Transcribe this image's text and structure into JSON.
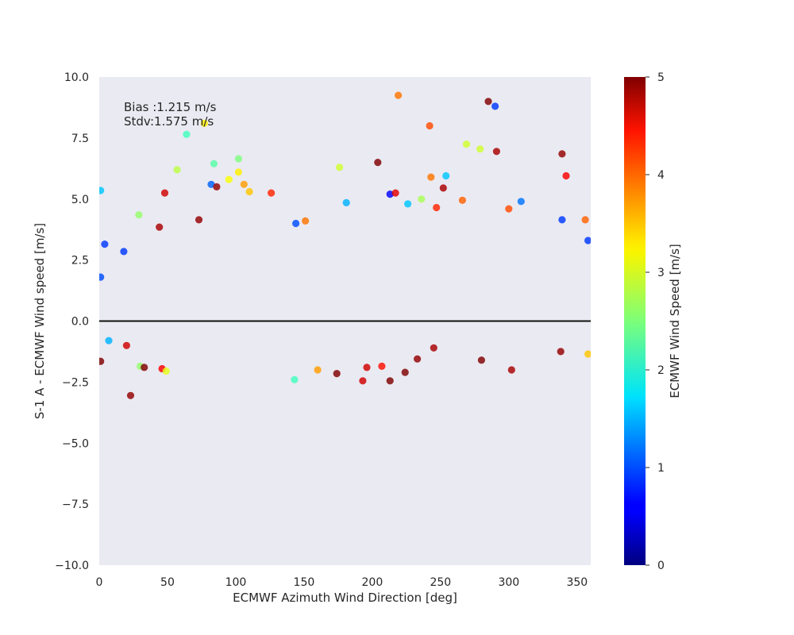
{
  "chart_data": {
    "type": "scatter",
    "title": "",
    "xlabel": "ECMWF Azimuth Wind Direction [deg]",
    "ylabel": "S-1 A - ECMWF Wind speed [m/s]",
    "xlim": [
      0,
      360
    ],
    "ylim": [
      -10,
      10
    ],
    "xticks": [
      0,
      50,
      100,
      150,
      200,
      250,
      300,
      350
    ],
    "yticks": [
      -10.0,
      -7.5,
      -5.0,
      -2.5,
      0.0,
      2.5,
      5.0,
      7.5,
      10.0
    ],
    "ytick_labels": [
      "−10.0",
      "−7.5",
      "−5.0",
      "−2.5",
      "0.0",
      "2.5",
      "5.0",
      "7.5",
      "10.0"
    ],
    "grid": false,
    "background": "#eaeaf2",
    "reference_line": {
      "y": 0,
      "color": "#000000"
    },
    "annotations": [
      "Bias :1.215 m/s",
      "Stdv:1.575 m/s"
    ],
    "colorbar": {
      "label": "ECMWF Wind Speed [m/s]",
      "range": [
        0,
        5
      ],
      "ticks": [
        0,
        1,
        2,
        3,
        4,
        5
      ],
      "colormap": "jet"
    },
    "points_estimated": [
      [
        1,
        5.35,
        1.6
      ],
      [
        1,
        1.8,
        1.0
      ],
      [
        1,
        -1.65,
        5.0
      ],
      [
        4,
        3.15,
        0.9
      ],
      [
        18,
        2.85,
        0.9
      ],
      [
        23,
        -3.05,
        4.9
      ],
      [
        29,
        4.35,
        2.6
      ],
      [
        44,
        3.85,
        4.8
      ],
      [
        48,
        5.25,
        4.6
      ],
      [
        57,
        6.2,
        2.8
      ],
      [
        64,
        7.65,
        2.2
      ],
      [
        73,
        4.15,
        4.9
      ],
      [
        77,
        8.1,
        3.2
      ],
      [
        82,
        5.6,
        1.1
      ],
      [
        84,
        6.45,
        2.3
      ],
      [
        86,
        5.5,
        4.9
      ],
      [
        95,
        5.8,
        3.1
      ],
      [
        102,
        6.65,
        2.5
      ],
      [
        102,
        6.1,
        3.2
      ],
      [
        106,
        5.6,
        3.6
      ],
      [
        110,
        5.3,
        3.4
      ],
      [
        126,
        5.25,
        4.2
      ],
      [
        144,
        4.0,
        1.0
      ],
      [
        151,
        4.1,
        3.8
      ],
      [
        176,
        6.3,
        2.9
      ],
      [
        181,
        4.85,
        1.5
      ],
      [
        204,
        6.5,
        5.0
      ],
      [
        213,
        5.2,
        0.6
      ],
      [
        217,
        5.25,
        4.5
      ],
      [
        219,
        9.25,
        3.8
      ],
      [
        226,
        4.8,
        1.6
      ],
      [
        236,
        5.0,
        2.7
      ],
      [
        242,
        8.0,
        4.0
      ],
      [
        243,
        5.9,
        3.8
      ],
      [
        247,
        4.65,
        4.2
      ],
      [
        252,
        5.45,
        4.8
      ],
      [
        254,
        5.95,
        1.6
      ],
      [
        266,
        4.95,
        3.9
      ],
      [
        269,
        7.25,
        2.9
      ],
      [
        279,
        7.05,
        2.9
      ],
      [
        285,
        9.0,
        5.0
      ],
      [
        290,
        8.8,
        0.9
      ],
      [
        291,
        6.95,
        4.8
      ],
      [
        300,
        4.6,
        4.0
      ],
      [
        309,
        4.9,
        1.2
      ],
      [
        339,
        6.85,
        4.9
      ],
      [
        342,
        5.95,
        4.4
      ],
      [
        339,
        4.15,
        0.9
      ],
      [
        356,
        4.15,
        3.9
      ],
      [
        358,
        3.3,
        0.9
      ],
      [
        143,
        -2.4,
        2.2
      ],
      [
        174,
        -2.15,
        5.0
      ],
      [
        193,
        -2.45,
        4.6
      ],
      [
        213,
        -2.45,
        5.0
      ],
      [
        224,
        -2.1,
        5.0
      ],
      [
        233,
        -1.55,
        4.9
      ],
      [
        245,
        -1.1,
        4.8
      ],
      [
        280,
        -1.6,
        5.0
      ],
      [
        302,
        -2.0,
        4.8
      ],
      [
        338,
        -1.25,
        4.9
      ],
      [
        358,
        -1.35,
        3.4
      ],
      [
        46,
        -1.95,
        4.4
      ],
      [
        49,
        -2.05,
        3.0
      ],
      [
        30,
        -1.85,
        2.6
      ],
      [
        33,
        -1.9,
        5.0
      ],
      [
        20,
        -1.0,
        4.6
      ],
      [
        7,
        -0.8,
        1.5
      ],
      [
        196,
        -1.9,
        4.6
      ],
      [
        160,
        -2.0,
        3.6
      ],
      [
        207,
        -1.85,
        4.3
      ]
    ]
  }
}
